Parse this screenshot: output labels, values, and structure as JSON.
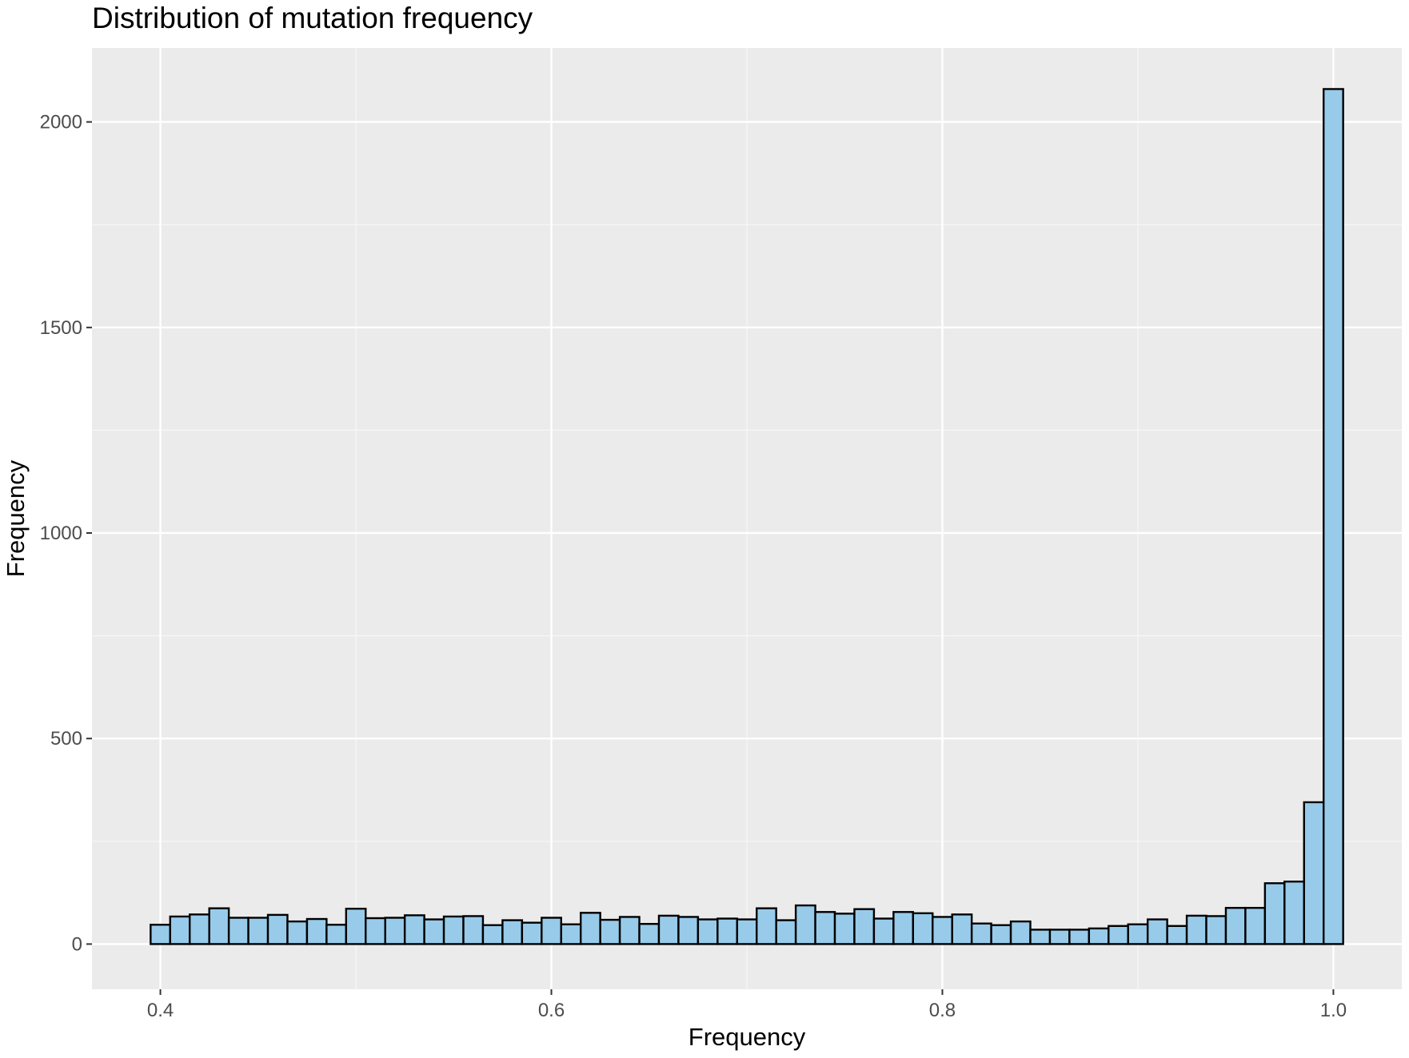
{
  "chart_data": {
    "type": "bar",
    "title": "Distribution of mutation frequency",
    "xlabel": "Frequency",
    "ylabel": "Frequency",
    "xlim": [
      0.365,
      1.035
    ],
    "ylim": [
      -110,
      2180
    ],
    "x_ticks": [
      0.4,
      0.6,
      0.8,
      1.0
    ],
    "x_tick_labels": [
      "0.4",
      "0.6",
      "0.8",
      "1.0"
    ],
    "y_ticks": [
      0,
      500,
      1000,
      1500,
      2000
    ],
    "y_tick_labels": [
      "0",
      "500",
      "1000",
      "1500",
      "2000"
    ],
    "grid": true,
    "legend": "none",
    "colors": {
      "panel_background": "#ebebeb",
      "grid_major": "#ffffff",
      "grid_minor": "#f7f7f7",
      "bar_fill": "#98cbea",
      "bar_edge": "#000000",
      "tick_text": "#4d4d4d",
      "tick_mark": "#333333"
    },
    "bin_width": 0.01,
    "bin_centers": [
      0.4,
      0.41,
      0.42,
      0.43,
      0.44,
      0.45,
      0.46,
      0.47,
      0.48,
      0.49,
      0.5,
      0.51,
      0.52,
      0.53,
      0.54,
      0.55,
      0.56,
      0.57,
      0.58,
      0.59,
      0.6,
      0.61,
      0.62,
      0.63,
      0.64,
      0.65,
      0.66,
      0.67,
      0.68,
      0.69,
      0.7,
      0.71,
      0.72,
      0.73,
      0.74,
      0.75,
      0.76,
      0.77,
      0.78,
      0.79,
      0.8,
      0.81,
      0.82,
      0.83,
      0.84,
      0.85,
      0.86,
      0.87,
      0.88,
      0.89,
      0.9,
      0.91,
      0.92,
      0.93,
      0.94,
      0.95,
      0.96,
      0.97,
      0.98,
      0.99,
      1.0
    ],
    "values": [
      47,
      67,
      72,
      87,
      64,
      64,
      71,
      55,
      61,
      47,
      86,
      63,
      64,
      70,
      60,
      67,
      68,
      46,
      58,
      52,
      64,
      48,
      76,
      59,
      66,
      49,
      69,
      66,
      60,
      62,
      60,
      87,
      58,
      94,
      78,
      74,
      85,
      62,
      78,
      75,
      66,
      72,
      50,
      46,
      55,
      35,
      35,
      35,
      38,
      44,
      48,
      60,
      44,
      69,
      68,
      88,
      88,
      148,
      152,
      345,
      2080
    ]
  }
}
